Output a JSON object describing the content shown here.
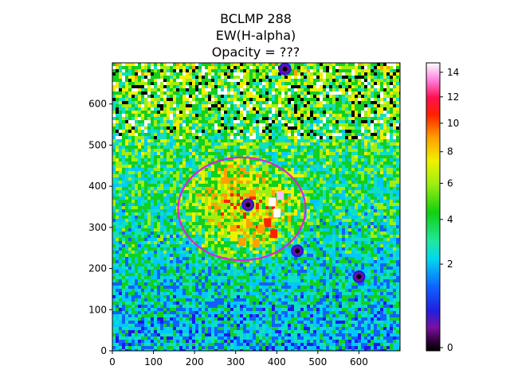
{
  "title_lines": [
    "BCLMP 288",
    "EW(H-alpha)",
    "Opacity = ???"
  ],
  "chart_data": {
    "type": "heatmap",
    "title": "BCLMP 288\nEW(H-alpha)\nOpacity = ???",
    "xlabel": "",
    "ylabel": "",
    "xlim": [
      0,
      700
    ],
    "ylim": [
      0,
      700
    ],
    "x_ticks": [
      0,
      100,
      200,
      300,
      400,
      500,
      600
    ],
    "y_ticks": [
      0,
      100,
      200,
      300,
      400,
      500,
      600
    ],
    "colormap": "gist_ncar-like (black → purple → blue → cyan → green → yellow → orange → red → pink → white)",
    "colorbar": {
      "ticks": [
        0,
        2,
        4,
        6,
        8,
        10,
        12,
        14
      ],
      "range": [
        0,
        14.8
      ],
      "scale": "nonlinear (sqrt-like)"
    },
    "regions": [
      {
        "label": "",
        "center": [
          315,
          345
        ],
        "x_extent": [
          195,
          505
        ],
        "y_extent": [
          225,
          475
        ],
        "edge_color": "#e020e0"
      }
    ],
    "features": [
      {
        "kind": "bright clump",
        "center": [
          365,
          330
        ],
        "value_range": [
          10,
          14.8
        ]
      },
      {
        "kind": "dark source",
        "center": [
          420,
          685
        ],
        "value": 0
      },
      {
        "kind": "dark source",
        "center": [
          600,
          180
        ],
        "value": 0
      },
      {
        "kind": "dark source",
        "center": [
          450,
          243
        ],
        "value": 0
      },
      {
        "kind": "dark source",
        "center": [
          330,
          355
        ],
        "value": 0
      }
    ],
    "grid": false
  },
  "colors": {
    "ellipse": "#e020e0",
    "background": "#ffffff"
  }
}
